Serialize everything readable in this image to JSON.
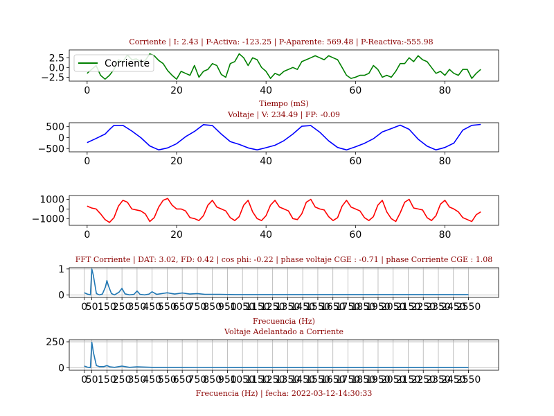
{
  "chart_data": [
    {
      "type": "line",
      "title": "Corriente | I: 2.43  |  P-Activa: -123.25 | P-Aparente: 569.48  |  P-Reactiva:-555.98",
      "xlabel": "Tiempo (mS)",
      "ylabel": "",
      "xlim": [
        -4,
        92
      ],
      "ylim": [
        -3.5,
        4.5
      ],
      "xticks": [
        "0",
        "20",
        "40",
        "60",
        "80"
      ],
      "yticks": [
        "2.5",
        "0.0",
        "−2.5"
      ],
      "legend": "upper-left",
      "series": [
        {
          "name": "Corriente",
          "color": "#008000",
          "x": [
            0,
            1,
            2,
            3,
            4,
            5,
            6,
            7,
            8,
            9,
            10,
            11,
            12,
            13,
            14,
            15,
            16,
            17,
            18,
            19,
            20,
            21,
            22,
            23,
            24,
            25,
            26,
            27,
            28,
            29,
            30,
            31,
            32,
            33,
            34,
            35,
            36,
            37,
            38,
            39,
            40,
            41,
            42,
            43,
            44,
            45,
            46,
            47,
            48,
            49,
            50,
            51,
            52,
            53,
            54,
            55,
            56,
            57,
            58,
            59,
            60,
            61,
            62,
            63,
            64,
            65,
            66,
            67,
            68,
            69,
            70,
            71,
            72,
            73,
            74,
            75,
            76,
            77,
            78,
            79,
            80,
            81,
            82,
            83,
            84,
            85,
            86,
            87,
            88
          ],
          "y": [
            -1.5,
            -0.5,
            0.5,
            -2.0,
            -3.0,
            -2.0,
            -0.5,
            2.0,
            1.5,
            3.2,
            2.0,
            2.2,
            1.5,
            1.8,
            3.5,
            3.0,
            1.8,
            1.0,
            -0.8,
            -2.0,
            -3.0,
            -1.0,
            -1.5,
            -2.0,
            0.5,
            -2.5,
            -1.0,
            -0.5,
            1.0,
            0.5,
            -1.8,
            -2.5,
            1.0,
            1.5,
            3.5,
            2.5,
            0.5,
            2.5,
            2.0,
            0.0,
            -1.0,
            -2.8,
            -1.5,
            -2.0,
            -1.0,
            -0.5,
            0.0,
            -0.5,
            1.5,
            2.0,
            2.5,
            3.0,
            2.5,
            2.0,
            3.0,
            2.5,
            2.0,
            0.0,
            -2.0,
            -2.8,
            -2.5,
            -2.0,
            -2.0,
            -1.5,
            0.5,
            -0.5,
            -2.5,
            -2.0,
            -2.5,
            -1.0,
            1.0,
            1.0,
            2.5,
            1.5,
            3.0,
            2.0,
            1.5,
            0.0,
            -1.5,
            -1.0,
            -2.0,
            -0.5,
            -1.5,
            -2.0,
            -0.5,
            -0.5,
            -2.8,
            -1.5,
            -0.5
          ]
        }
      ]
    },
    {
      "type": "line",
      "title": "Voltaje | V: 234.49 |  FP: -0.09",
      "xlabel": "",
      "ylabel": "",
      "xlim": [
        -4,
        92
      ],
      "ylim": [
        -650,
        680
      ],
      "xticks": [
        "0",
        "20",
        "40",
        "60",
        "80"
      ],
      "yticks": [
        "500",
        "0",
        "−500"
      ],
      "series": [
        {
          "color": "#0000ff",
          "x": [
            0,
            2,
            4,
            5,
            6,
            8,
            10,
            12,
            14,
            16,
            18,
            20,
            22,
            24,
            26,
            28,
            30,
            32,
            34,
            36,
            38,
            40,
            42,
            44,
            46,
            48,
            50,
            52,
            54,
            56,
            58,
            60,
            62,
            64,
            66,
            68,
            70,
            72,
            74,
            76,
            78,
            80,
            82,
            84,
            86,
            88
          ],
          "y": [
            -230,
            -40,
            160,
            370,
            560,
            560,
            300,
            0,
            -380,
            -560,
            -470,
            -280,
            40,
            280,
            590,
            550,
            160,
            -180,
            -310,
            -470,
            -560,
            -460,
            -350,
            -140,
            160,
            520,
            550,
            250,
            -150,
            -450,
            -560,
            -420,
            -260,
            -50,
            260,
            410,
            570,
            380,
            -70,
            -390,
            -560,
            -450,
            -250,
            340,
            560,
            600
          ]
        }
      ]
    },
    {
      "type": "line",
      "title": "",
      "xlabel": "",
      "ylabel": "",
      "xlim": [
        -4,
        92
      ],
      "ylim": [
        -1700,
        1400
      ],
      "xticks": [
        "0",
        "20",
        "40",
        "60",
        "80"
      ],
      "yticks": [
        "1000",
        "0",
        "−1000"
      ],
      "series": [
        {
          "color": "#ff0000",
          "x": [
            0,
            1,
            2,
            3,
            4,
            5,
            6,
            7,
            8,
            9,
            10,
            11,
            12,
            13,
            14,
            15,
            16,
            17,
            18,
            19,
            20,
            21,
            22,
            23,
            24,
            25,
            26,
            27,
            28,
            29,
            30,
            31,
            32,
            33,
            34,
            35,
            36,
            37,
            38,
            39,
            40,
            41,
            42,
            43,
            44,
            45,
            46,
            47,
            48,
            49,
            50,
            51,
            52,
            53,
            54,
            55,
            56,
            57,
            58,
            59,
            60,
            61,
            62,
            63,
            64,
            65,
            66,
            67,
            68,
            69,
            70,
            71,
            72,
            73,
            74,
            75,
            76,
            77,
            78,
            79,
            80,
            81,
            82,
            83,
            84,
            85,
            86,
            87,
            88
          ],
          "y": [
            300,
            100,
            0,
            -500,
            -1100,
            -1400,
            -900,
            300,
            900,
            700,
            0,
            -100,
            -200,
            -500,
            -1300,
            -900,
            200,
            900,
            1100,
            400,
            0,
            0,
            -200,
            -900,
            -1000,
            -1200,
            -700,
            400,
            900,
            200,
            0,
            -200,
            -900,
            -1200,
            -800,
            400,
            900,
            -300,
            -1000,
            -1200,
            -700,
            400,
            900,
            200,
            0,
            -200,
            -1000,
            -1100,
            -500,
            700,
            1000,
            200,
            0,
            -100,
            -800,
            -1200,
            -900,
            300,
            900,
            200,
            0,
            -200,
            -900,
            -1200,
            -800,
            400,
            900,
            -300,
            -1000,
            -1300,
            -400,
            700,
            1000,
            100,
            0,
            -100,
            -900,
            -1200,
            -700,
            500,
            900,
            200,
            0,
            -300,
            -900,
            -1100,
            -1300,
            -600,
            -300
          ]
        }
      ]
    },
    {
      "type": "line",
      "title": "FFT Corriente | DAT: 3.02, FD: 0.42 |   cos phi: -0.22 | phase voltaje CGE : -0.71 | phase Corriente CGE : 1.08",
      "xlabel": "Frecuencia (Hz)",
      "ylabel": "",
      "xlim": [
        -100,
        2750
      ],
      "ylim": [
        -0.1,
        1.05
      ],
      "xticks": [
        "0",
        "50",
        "150",
        "250",
        "350",
        "450",
        "550",
        "650",
        "750",
        "850",
        "950",
        "1050",
        "1150",
        "1250",
        "1350",
        "1450",
        "1550",
        "1650",
        "1750",
        "1850",
        "1950",
        "2050",
        "2150",
        "2250",
        "2350",
        "2450",
        "2550"
      ],
      "yticks": [
        "1",
        "0"
      ],
      "grid": true,
      "series": [
        {
          "color": "#1f77b4",
          "x": [
            0,
            20,
            40,
            50,
            60,
            80,
            100,
            120,
            140,
            150,
            160,
            180,
            200,
            230,
            250,
            270,
            300,
            330,
            350,
            370,
            400,
            430,
            450,
            480,
            550,
            600,
            650,
            700,
            750,
            800,
            900,
            1000,
            1200,
            1500,
            2000,
            2550
          ],
          "y": [
            0.08,
            0.03,
            0.0,
            1.0,
            0.75,
            0.05,
            0.0,
            0.03,
            0.3,
            0.55,
            0.35,
            0.05,
            0.0,
            0.1,
            0.25,
            0.04,
            0.0,
            0.02,
            0.15,
            0.02,
            0.0,
            0.03,
            0.12,
            0.02,
            0.08,
            0.03,
            0.07,
            0.03,
            0.05,
            0.02,
            0.02,
            0.01,
            0.01,
            0.01,
            0.01,
            0.01
          ]
        }
      ]
    },
    {
      "type": "line",
      "title": "Voltaje Adelantado a Corriente",
      "xlabel": "Frecuencia (Hz)  |    fecha: 2022-03-12-14:30:33",
      "ylabel": "",
      "xlim": [
        -100,
        2750
      ],
      "ylim": [
        -25,
        270
      ],
      "xticks": [
        "0",
        "50",
        "150",
        "250",
        "350",
        "450",
        "550",
        "650",
        "750",
        "850",
        "950",
        "1050",
        "1150",
        "1250",
        "1350",
        "1450",
        "1550",
        "1650",
        "1750",
        "1850",
        "1950",
        "2050",
        "2150",
        "2250",
        "2350",
        "2450",
        "2550"
      ],
      "yticks": [
        "250",
        "0"
      ],
      "grid": true,
      "series": [
        {
          "color": "#1f77b4",
          "x": [
            0,
            20,
            40,
            50,
            60,
            80,
            100,
            130,
            150,
            170,
            200,
            250,
            300,
            350,
            450,
            550,
            650,
            750,
            1000,
            1500,
            2000,
            2550
          ],
          "y": [
            15,
            5,
            0,
            245,
            150,
            20,
            10,
            10,
            20,
            8,
            3,
            15,
            3,
            8,
            3,
            3,
            3,
            2,
            1,
            1,
            1,
            1
          ]
        }
      ]
    }
  ]
}
